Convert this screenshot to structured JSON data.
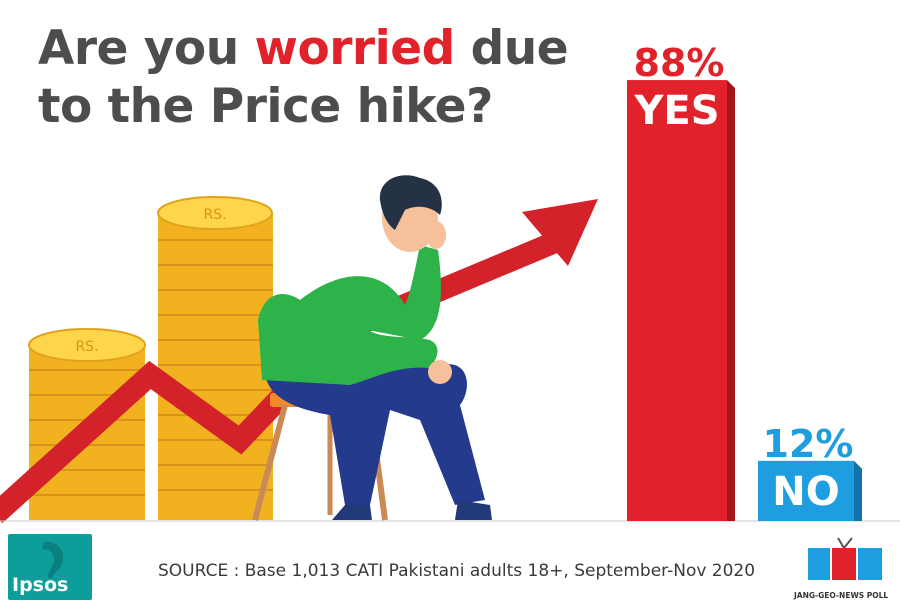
{
  "title": {
    "part1": "Are you ",
    "highlight": "worried",
    "part2": " due to the Price hike?"
  },
  "chart_data": {
    "type": "bar",
    "categories": [
      "YES",
      "NO"
    ],
    "values": [
      88,
      12
    ],
    "value_labels": [
      "88%",
      "12%"
    ],
    "ylim": [
      0,
      100
    ],
    "colors": [
      "#e2222b",
      "#1e9ee0"
    ]
  },
  "coin_label": "RS.",
  "source": "SOURCE : Base 1,013 CATI Pakistani adults 18+, September-Nov 2020",
  "logos": {
    "ipsos": "Ipsos",
    "jgn_caption": "JANG-GEO-NEWS POLL"
  },
  "colors": {
    "title_gray": "#4d4d4d",
    "accent_red": "#e2222b",
    "accent_blue": "#1e9ee0",
    "ipsos_teal": "#0d9e9c"
  }
}
